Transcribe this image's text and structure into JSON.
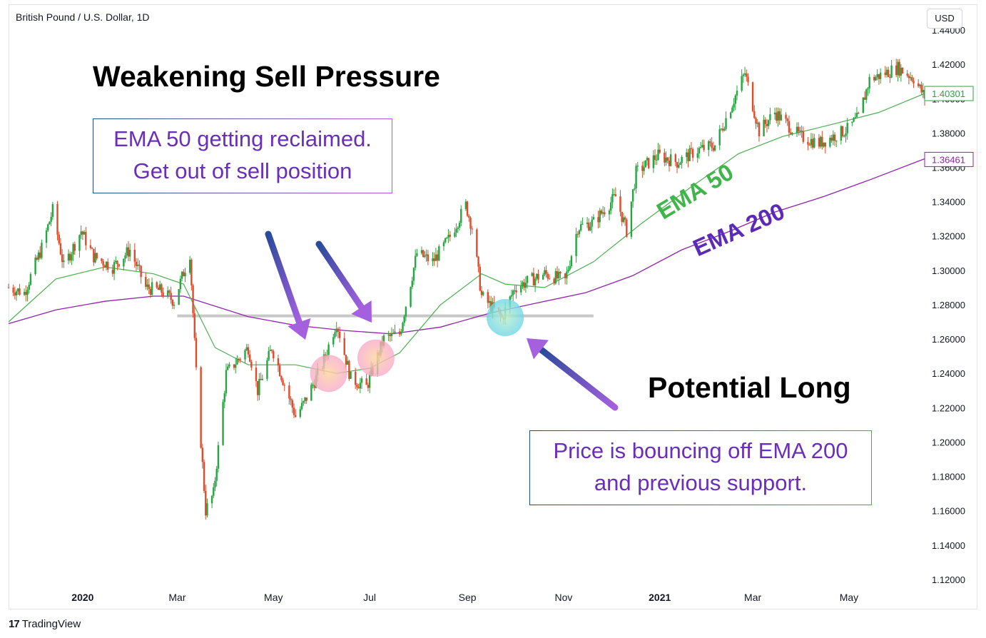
{
  "header": {
    "symbol_title": "British Pound / U.S. Dollar, 1D",
    "currency": "USD"
  },
  "footer": {
    "brand": "TradingView",
    "brand_mark": "17"
  },
  "annotations": {
    "heading_left": "Weakening Sell Pressure",
    "heading_right": "Potential Long",
    "note_left": [
      "EMA 50 getting reclaimed.",
      "Get out of sell position"
    ],
    "note_right": [
      "Price is bouncing off EMA 200",
      "and previous support."
    ],
    "ema50_label": "EMA 50",
    "ema200_label": "EMA 200"
  },
  "colors": {
    "up": "#26a641",
    "down": "#e04b2a",
    "ema50": "#4caf50",
    "ema200": "#8e24aa",
    "ema50_label": "#3fb54a",
    "ema200_label": "#5b2ab8",
    "support_line": "#c8c8c8",
    "arrow_start": "#2a4a9a",
    "arrow_end": "#a560e0",
    "note_text": "#6a2fb8"
  },
  "chart_data": {
    "type": "candlestick",
    "title": "British Pound / U.S. Dollar, 1D",
    "ylim": [
      1.11,
      1.445
    ],
    "y_ticks": [
      "1.12000",
      "1.14000",
      "1.16000",
      "1.18000",
      "1.20000",
      "1.22000",
      "1.24000",
      "1.26000",
      "1.28000",
      "1.30000",
      "1.32000",
      "1.34000",
      "1.36000",
      "1.38000",
      "1.40000",
      "1.42000",
      "1.44000"
    ],
    "x_ticks": [
      {
        "label": "2020",
        "bold": true,
        "date": "2020-01-01"
      },
      {
        "label": "Mar",
        "bold": false,
        "date": "2020-03-01"
      },
      {
        "label": "May",
        "bold": false,
        "date": "2020-05-01"
      },
      {
        "label": "Jul",
        "bold": false,
        "date": "2020-07-01"
      },
      {
        "label": "Sep",
        "bold": false,
        "date": "2020-09-01"
      },
      {
        "label": "Nov",
        "bold": false,
        "date": "2020-11-01"
      },
      {
        "label": "2021",
        "bold": true,
        "date": "2021-01-01"
      },
      {
        "label": "Mar",
        "bold": false,
        "date": "2021-03-01"
      },
      {
        "label": "May",
        "bold": false,
        "date": "2021-05-01"
      }
    ],
    "x_range": [
      "2019-11-15",
      "2021-06-18"
    ],
    "price_path": [
      [
        "2019-11-15",
        1.29
      ],
      [
        "2019-11-25",
        1.287
      ],
      [
        "2019-12-06",
        1.313
      ],
      [
        "2019-12-13",
        1.335
      ],
      [
        "2019-12-20",
        1.302
      ],
      [
        "2019-12-31",
        1.323
      ],
      [
        "2020-01-08",
        1.308
      ],
      [
        "2020-01-20",
        1.302
      ],
      [
        "2020-01-31",
        1.312
      ],
      [
        "2020-02-10",
        1.29
      ],
      [
        "2020-02-20",
        1.288
      ],
      [
        "2020-02-28",
        1.282
      ],
      [
        "2020-03-09",
        1.31
      ],
      [
        "2020-03-13",
        1.24
      ],
      [
        "2020-03-19",
        1.16
      ],
      [
        "2020-03-24",
        1.17
      ],
      [
        "2020-04-01",
        1.24
      ],
      [
        "2020-04-15",
        1.255
      ],
      [
        "2020-04-21",
        1.23
      ],
      [
        "2020-04-30",
        1.255
      ],
      [
        "2020-05-15",
        1.215
      ],
      [
        "2020-05-20",
        1.222
      ],
      [
        "2020-06-01",
        1.245
      ],
      [
        "2020-06-10",
        1.27
      ],
      [
        "2020-06-19",
        1.237
      ],
      [
        "2020-06-29",
        1.232
      ],
      [
        "2020-07-10",
        1.26
      ],
      [
        "2020-07-20",
        1.263
      ],
      [
        "2020-07-31",
        1.31
      ],
      [
        "2020-08-10",
        1.305
      ],
      [
        "2020-08-20",
        1.318
      ],
      [
        "2020-08-31",
        1.338
      ],
      [
        "2020-09-04",
        1.325
      ],
      [
        "2020-09-10",
        1.285
      ],
      [
        "2020-09-23",
        1.272
      ],
      [
        "2020-10-01",
        1.29
      ],
      [
        "2020-10-20",
        1.298
      ],
      [
        "2020-11-02",
        1.294
      ],
      [
        "2020-11-10",
        1.325
      ],
      [
        "2020-11-20",
        1.328
      ],
      [
        "2020-12-04",
        1.343
      ],
      [
        "2020-12-11",
        1.323
      ],
      [
        "2020-12-17",
        1.357
      ],
      [
        "2020-12-31",
        1.367
      ],
      [
        "2021-01-12",
        1.363
      ],
      [
        "2021-01-25",
        1.37
      ],
      [
        "2021-02-05",
        1.373
      ],
      [
        "2021-02-24",
        1.415
      ],
      [
        "2021-03-05",
        1.381
      ],
      [
        "2021-03-15",
        1.392
      ],
      [
        "2021-03-31",
        1.378
      ],
      [
        "2021-04-12",
        1.374
      ],
      [
        "2021-04-30",
        1.382
      ],
      [
        "2021-05-07",
        1.389
      ],
      [
        "2021-05-14",
        1.411
      ],
      [
        "2021-06-01",
        1.418
      ],
      [
        "2021-06-11",
        1.412
      ],
      [
        "2021-06-18",
        1.401
      ]
    ],
    "ema50_path": [
      [
        "2019-11-15",
        1.27
      ],
      [
        "2019-12-15",
        1.295
      ],
      [
        "2020-01-15",
        1.302
      ],
      [
        "2020-02-15",
        1.298
      ],
      [
        "2020-03-05",
        1.292
      ],
      [
        "2020-03-25",
        1.255
      ],
      [
        "2020-04-15",
        1.245
      ],
      [
        "2020-05-15",
        1.245
      ],
      [
        "2020-06-10",
        1.24
      ],
      [
        "2020-07-01",
        1.243
      ],
      [
        "2020-07-20",
        1.252
      ],
      [
        "2020-08-15",
        1.28
      ],
      [
        "2020-09-10",
        1.298
      ],
      [
        "2020-09-25",
        1.292
      ],
      [
        "2020-10-20",
        1.29
      ],
      [
        "2020-11-20",
        1.305
      ],
      [
        "2020-12-20",
        1.327
      ],
      [
        "2021-01-20",
        1.348
      ],
      [
        "2021-02-20",
        1.368
      ],
      [
        "2021-03-20",
        1.378
      ],
      [
        "2021-04-20",
        1.385
      ],
      [
        "2021-05-20",
        1.392
      ],
      [
        "2021-06-18",
        1.403
      ]
    ],
    "ema200_path": [
      [
        "2019-11-15",
        1.269
      ],
      [
        "2019-12-15",
        1.277
      ],
      [
        "2020-01-15",
        1.282
      ],
      [
        "2020-02-15",
        1.285
      ],
      [
        "2020-03-05",
        1.285
      ],
      [
        "2020-04-15",
        1.273
      ],
      [
        "2020-05-15",
        1.268
      ],
      [
        "2020-06-15",
        1.265
      ],
      [
        "2020-07-15",
        1.263
      ],
      [
        "2020-08-15",
        1.267
      ],
      [
        "2020-09-15",
        1.275
      ],
      [
        "2020-10-15",
        1.281
      ],
      [
        "2020-11-15",
        1.287
      ],
      [
        "2020-12-15",
        1.297
      ],
      [
        "2021-01-15",
        1.312
      ],
      [
        "2021-02-15",
        1.323
      ],
      [
        "2021-03-15",
        1.334
      ],
      [
        "2021-04-15",
        1.343
      ],
      [
        "2021-05-15",
        1.353
      ],
      [
        "2021-06-18",
        1.365
      ]
    ],
    "support_level": {
      "price": 1.2735,
      "from": "2020-03-01",
      "to": "2020-11-20"
    },
    "last_price": {
      "value": "1.40301",
      "price": 1.40301,
      "color": "#26a641"
    },
    "ema200_price": {
      "value": "1.36461",
      "price": 1.36461,
      "color": "#8e24aa"
    },
    "highlight_circles": [
      {
        "date": "2020-06-05",
        "price": 1.24,
        "color": "peach"
      },
      {
        "date": "2020-07-05",
        "price": 1.249,
        "color": "peach"
      },
      {
        "date": "2020-09-25",
        "price": 1.2725,
        "color": "teal"
      }
    ]
  }
}
